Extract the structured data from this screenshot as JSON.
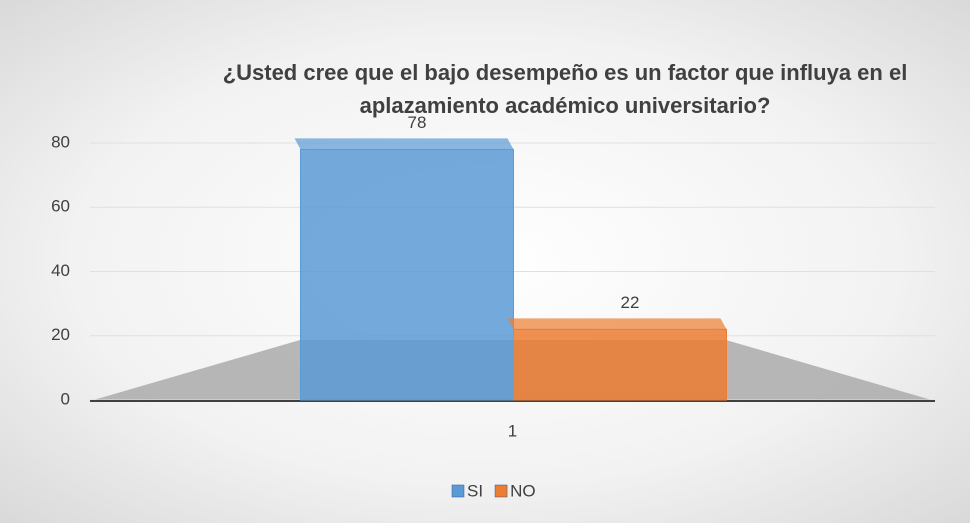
{
  "chart_data": {
    "type": "bar",
    "title": "¿Usted cree que el bajo desempeño es un factor que influya en el aplazamiento académico universitario?",
    "categories": [
      "1"
    ],
    "series": [
      {
        "name": "SI",
        "color": "#5b9bd5",
        "values": [
          78
        ]
      },
      {
        "name": "NO",
        "color": "#ed7d31",
        "values": [
          22
        ]
      }
    ],
    "ylim": [
      0,
      80
    ],
    "yticks": [
      0,
      20,
      40,
      60,
      80
    ],
    "grid": true,
    "legend": "bottom"
  }
}
